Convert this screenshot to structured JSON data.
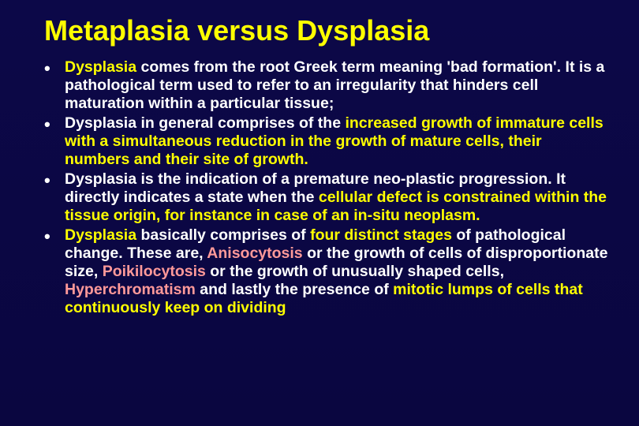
{
  "slide": {
    "background_color": "#0a0640",
    "title": {
      "text": "Metaplasia versus Dysplasia",
      "color": "#ffff00",
      "fontsize": 36,
      "fontweight": "bold"
    },
    "text_colors": {
      "primary": "#ffffff",
      "highlight": "#ffff00",
      "term": "#ff9999"
    },
    "body_fontsize": 19.5,
    "body_fontweight": "bold",
    "line_height": 1.18,
    "bullets": [
      {
        "parts": [
          {
            "t": "Dysplasia",
            "c": "highlight"
          },
          {
            "t": " comes from the root Greek term meaning 'bad formation'. It is a pathological term used to refer to an irregularity that hinders cell maturation within a particular tissue;",
            "c": "primary"
          }
        ]
      },
      {
        "parts": [
          {
            "t": "Dysplasia in general comprises of the ",
            "c": "primary"
          },
          {
            "t": "increased growth of immature cells with a simultaneous reduction in the growth of mature cells, their numbers and their site of growth.",
            "c": "highlight"
          }
        ]
      },
      {
        "parts": [
          {
            "t": "Dysplasia is the indication of a premature neo-plastic progression. It directly indicates a state when the ",
            "c": "primary"
          },
          {
            "t": "cellular defect is constrained within the tissue origin, for instance in case of an in-situ neoplasm.",
            "c": "highlight"
          }
        ]
      },
      {
        "parts": [
          {
            "t": "Dysplasia",
            "c": "highlight"
          },
          {
            "t": " basically comprises of ",
            "c": "primary"
          },
          {
            "t": "four distinct stages ",
            "c": "highlight"
          },
          {
            "t": "of pathological change. These are, ",
            "c": "primary"
          },
          {
            "t": "Anisocytosis ",
            "c": "term"
          },
          {
            "t": "or the growth of cells of disproportionate size, ",
            "c": "primary"
          },
          {
            "t": "Poikilocytosis ",
            "c": "term"
          },
          {
            "t": "or the growth of unusually shaped cells, ",
            "c": "primary"
          },
          {
            "t": "Hyperchromatism",
            "c": "term"
          },
          {
            "t": " and lastly the presence of ",
            "c": "primary"
          },
          {
            "t": "mitotic lumps of cells that continuously keep on dividing",
            "c": "highlight"
          }
        ]
      }
    ]
  }
}
